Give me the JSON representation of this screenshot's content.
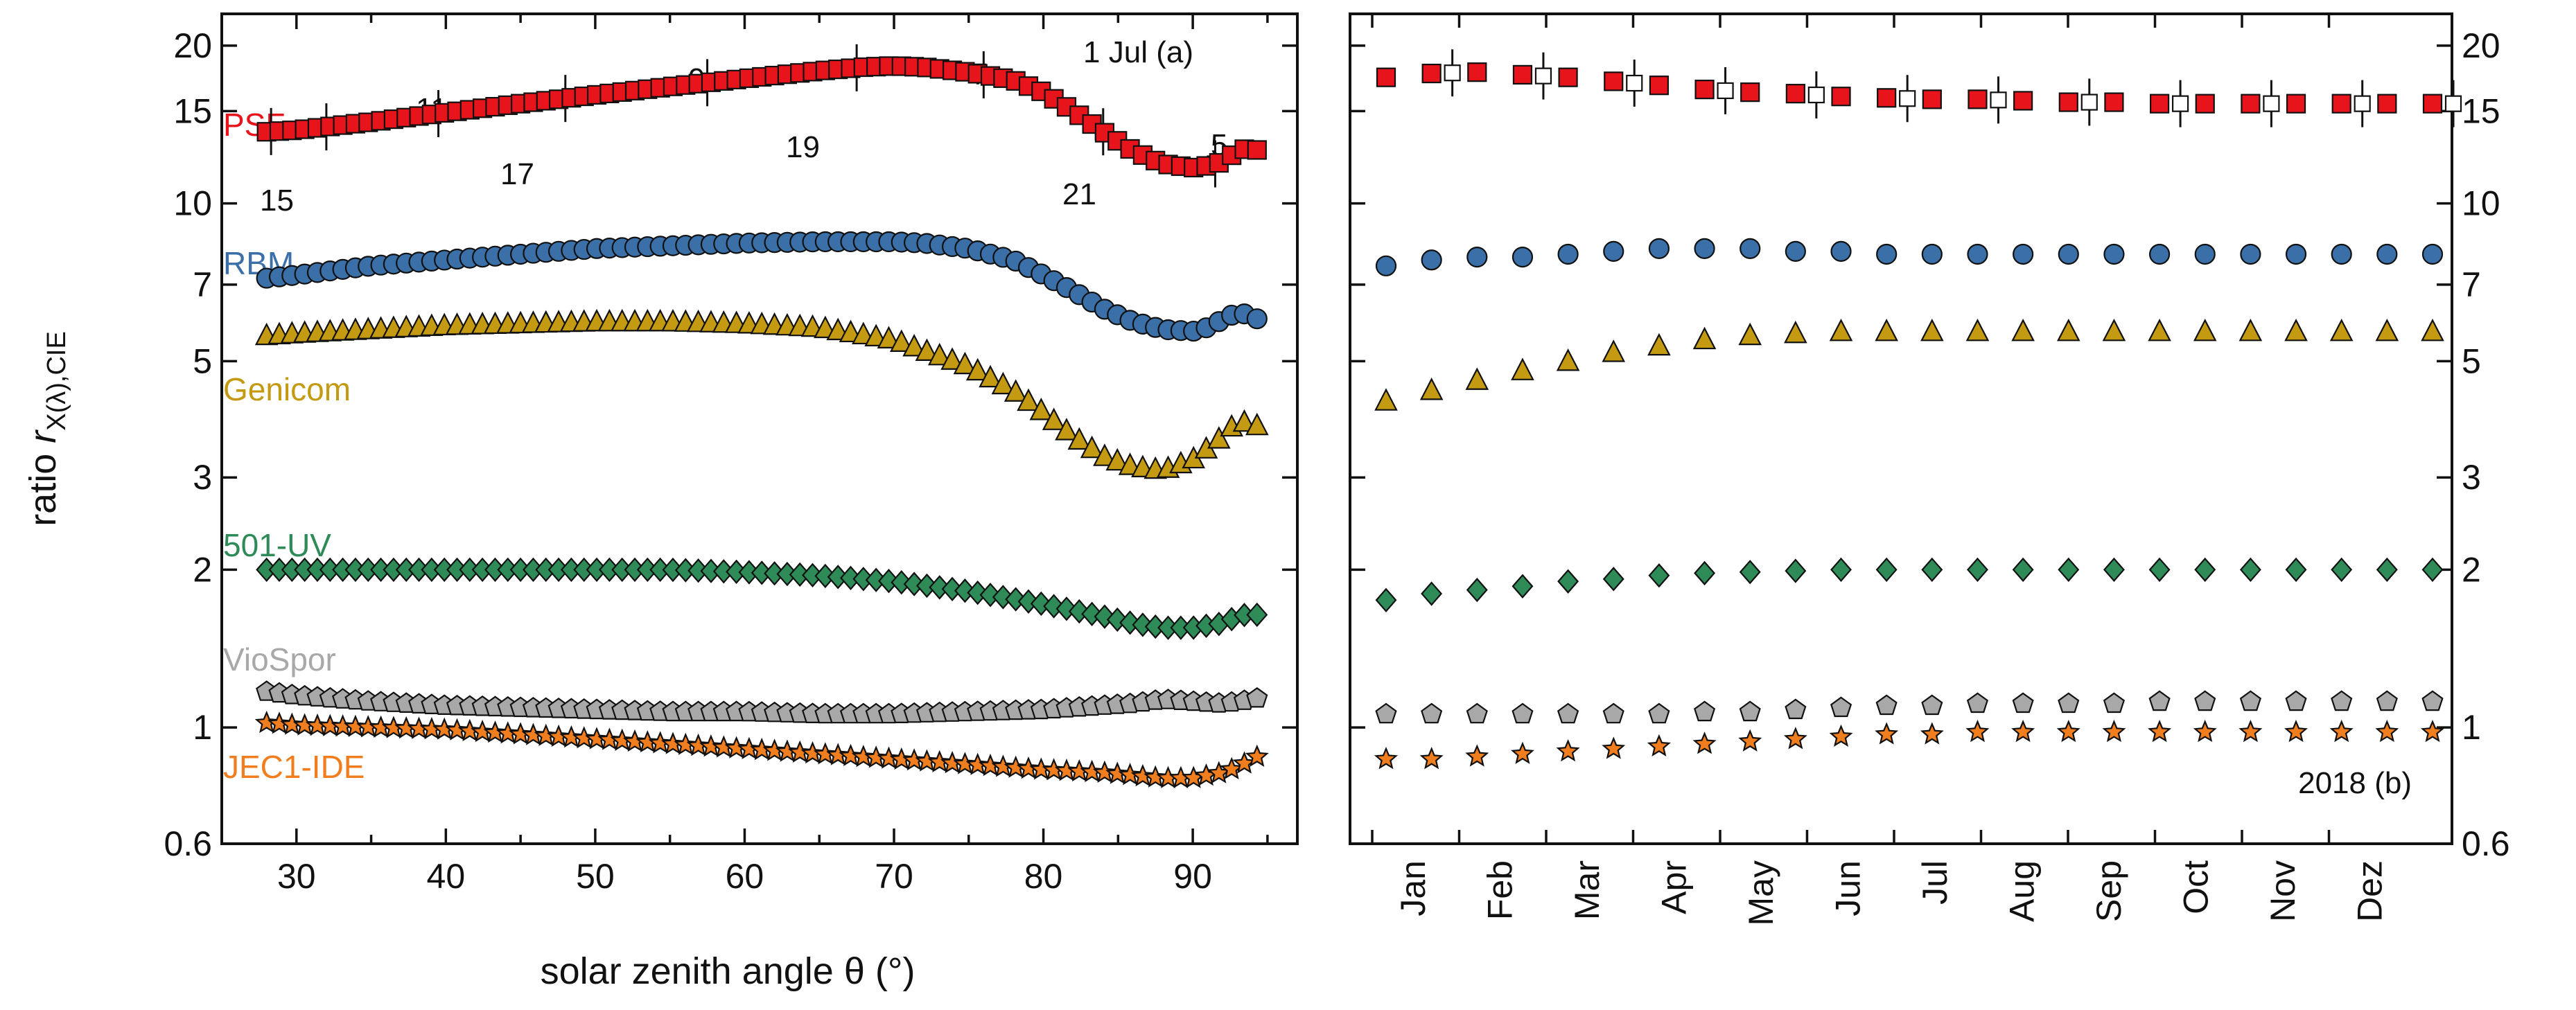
{
  "chart_data": {
    "type": "scatter",
    "y_axis": {
      "title_prefix": "ratio ",
      "title_var": "r",
      "title_sub": "X(λ),CIE",
      "scale": "log",
      "ylim": [
        0.6,
        23
      ],
      "ticks": [
        {
          "v": 0.6,
          "label": "0.6"
        },
        {
          "v": 1,
          "label": "1"
        },
        {
          "v": 2,
          "label": "2"
        },
        {
          "v": 3,
          "label": "3"
        },
        {
          "v": 5,
          "label": "5"
        },
        {
          "v": 7,
          "label": "7"
        },
        {
          "v": 10,
          "label": "10"
        },
        {
          "v": 15,
          "label": "15"
        },
        {
          "v": 20,
          "label": "20"
        }
      ]
    },
    "panel_a": {
      "annotation": "1 Jul (a)",
      "xlabel": "solar zenith angle θ (°)",
      "xlim": [
        25,
        97
      ],
      "xticks": [
        30,
        40,
        50,
        60,
        70,
        80,
        90
      ],
      "series_labels": [
        "PSF",
        "RBM",
        "Genicom",
        "501-UV",
        "VioSpor",
        "JEC1-IDE"
      ],
      "hour_labels": [
        "15",
        "11",
        "17",
        "9",
        "19",
        "7",
        "21",
        "5"
      ]
    },
    "panel_b": {
      "annotation": "2018 (b)",
      "months": [
        "Jan",
        "Feb",
        "Mar",
        "Apr",
        "May",
        "Jun",
        "Jul",
        "Aug",
        "Sep",
        "Oct",
        "Nov",
        "Dez"
      ]
    },
    "series": [
      {
        "name": "PSF",
        "color": "#e8141c",
        "marker": "square",
        "theta": [
          28,
          30,
          35,
          40,
          45,
          50,
          55,
          60,
          65,
          68,
          70,
          72,
          75,
          78,
          80,
          82,
          84,
          86,
          88,
          90,
          91,
          92,
          93,
          94,
          95
        ],
        "values": [
          13.7,
          13.8,
          14.3,
          14.9,
          15.5,
          16.1,
          16.7,
          17.3,
          17.9,
          18.2,
          18.3,
          18.2,
          17.8,
          17.2,
          16.3,
          15.0,
          13.7,
          12.6,
          11.9,
          11.7,
          11.8,
          12.0,
          12.6,
          12.8,
          12.3
        ],
        "annual": [
          17.4,
          17.7,
          17.8,
          17.6,
          17.4,
          17.1,
          16.8,
          16.5,
          16.3,
          16.2,
          16.0,
          15.9,
          15.8,
          15.8,
          15.7,
          15.6,
          15.6,
          15.5,
          15.5,
          15.5,
          15.5,
          15.5,
          15.5,
          15.5
        ]
      },
      {
        "name": "RBM",
        "color": "#3a6fa8",
        "marker": "circle",
        "theta": [
          28,
          30,
          35,
          40,
          45,
          50,
          55,
          60,
          65,
          70,
          72,
          75,
          78,
          80,
          82,
          84,
          86,
          88,
          90,
          91,
          92,
          93,
          94,
          95
        ],
        "values": [
          7.2,
          7.3,
          7.6,
          7.8,
          8.0,
          8.2,
          8.3,
          8.4,
          8.45,
          8.45,
          8.4,
          8.2,
          7.8,
          7.3,
          6.8,
          6.3,
          5.95,
          5.75,
          5.7,
          5.8,
          6.0,
          6.2,
          6.1,
          5.85
        ],
        "annual": [
          7.6,
          7.8,
          7.9,
          7.9,
          8.0,
          8.1,
          8.2,
          8.2,
          8.2,
          8.1,
          8.1,
          8.0,
          8.0,
          8.0,
          8.0,
          8.0,
          8.0,
          8.0,
          8.0,
          8.0,
          8.0,
          8.0,
          8.0,
          8.0
        ]
      },
      {
        "name": "Genicom",
        "color": "#c49a12",
        "marker": "triangle",
        "theta": [
          28,
          30,
          35,
          40,
          45,
          50,
          55,
          60,
          65,
          70,
          72,
          75,
          78,
          80,
          82,
          84,
          86,
          88,
          90,
          92,
          93,
          94,
          95
        ],
        "values": [
          5.6,
          5.65,
          5.75,
          5.85,
          5.9,
          5.95,
          5.95,
          5.9,
          5.8,
          5.5,
          5.25,
          4.9,
          4.4,
          4.0,
          3.6,
          3.3,
          3.15,
          3.1,
          3.25,
          3.6,
          3.85,
          3.8,
          3.7
        ],
        "annual": [
          4.2,
          4.4,
          4.6,
          4.8,
          5.0,
          5.2,
          5.35,
          5.5,
          5.6,
          5.65,
          5.7,
          5.7,
          5.7,
          5.7,
          5.7,
          5.7,
          5.7,
          5.7,
          5.7,
          5.7,
          5.7,
          5.7,
          5.7,
          5.7
        ]
      },
      {
        "name": "501-UV",
        "color": "#2e8b57",
        "marker": "diamond",
        "theta": [
          28,
          30,
          35,
          40,
          45,
          50,
          55,
          60,
          65,
          70,
          75,
          80,
          84,
          86,
          88,
          90,
          92,
          93,
          94,
          95
        ],
        "values": [
          2.0,
          2.0,
          2.0,
          2.0,
          2.0,
          2.0,
          2.0,
          1.98,
          1.95,
          1.9,
          1.82,
          1.72,
          1.63,
          1.58,
          1.55,
          1.55,
          1.58,
          1.63,
          1.65,
          1.62
        ],
        "annual": [
          1.75,
          1.8,
          1.83,
          1.86,
          1.9,
          1.92,
          1.95,
          1.97,
          1.98,
          1.99,
          2.0,
          2.0,
          2.0,
          2.0,
          2.0,
          2.0,
          2.0,
          2.0,
          2.0,
          2.0,
          2.0,
          2.0,
          2.0,
          2.0
        ]
      },
      {
        "name": "VioSpor",
        "color": "#a8a8a8",
        "marker": "pentagon",
        "theta": [
          28,
          30,
          35,
          40,
          45,
          50,
          55,
          60,
          65,
          70,
          75,
          80,
          84,
          86,
          88,
          90,
          92,
          93,
          94,
          95
        ],
        "values": [
          1.17,
          1.15,
          1.12,
          1.1,
          1.09,
          1.08,
          1.07,
          1.07,
          1.06,
          1.06,
          1.07,
          1.08,
          1.1,
          1.11,
          1.13,
          1.12,
          1.11,
          1.12,
          1.13,
          1.15
        ],
        "annual": [
          1.06,
          1.06,
          1.06,
          1.06,
          1.06,
          1.06,
          1.06,
          1.07,
          1.07,
          1.08,
          1.09,
          1.1,
          1.1,
          1.11,
          1.11,
          1.11,
          1.11,
          1.12,
          1.12,
          1.12,
          1.12,
          1.12,
          1.12,
          1.12
        ]
      },
      {
        "name": "JEC1-IDE",
        "color": "#f07d1e",
        "marker": "star",
        "theta": [
          28,
          30,
          35,
          40,
          45,
          50,
          55,
          60,
          65,
          70,
          75,
          80,
          84,
          86,
          88,
          90,
          91,
          92,
          93,
          94,
          95
        ],
        "values": [
          1.02,
          1.01,
          1.0,
          0.99,
          0.97,
          0.95,
          0.93,
          0.91,
          0.89,
          0.87,
          0.85,
          0.83,
          0.82,
          0.81,
          0.8,
          0.8,
          0.81,
          0.82,
          0.84,
          0.87,
          0.9
        ],
        "annual": [
          0.87,
          0.87,
          0.88,
          0.89,
          0.9,
          0.91,
          0.92,
          0.93,
          0.94,
          0.95,
          0.96,
          0.97,
          0.97,
          0.98,
          0.98,
          0.98,
          0.98,
          0.98,
          0.98,
          0.98,
          0.98,
          0.98,
          0.98,
          0.98
        ]
      }
    ]
  }
}
